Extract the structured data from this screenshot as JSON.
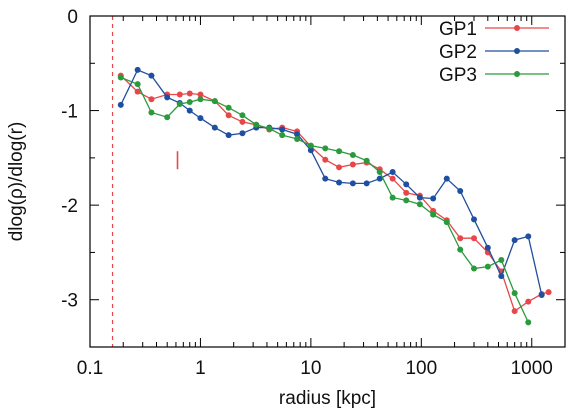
{
  "chart_data": {
    "type": "line",
    "xlabel": "radius [kpc]",
    "ylabel": "dlog(ρ)/dlog(r)",
    "xscale": "log",
    "xlim": [
      0.1,
      2000
    ],
    "ylim": [
      -3.5,
      0
    ],
    "x_ticks": [
      {
        "value": 0.1,
        "label": "0.1"
      },
      {
        "value": 1,
        "label": "1"
      },
      {
        "value": 10,
        "label": "10"
      },
      {
        "value": 100,
        "label": "100"
      },
      {
        "value": 1000,
        "label": "1000"
      }
    ],
    "y_ticks": [
      {
        "value": 0,
        "label": "0"
      },
      {
        "value": -1,
        "label": "-1"
      },
      {
        "value": -2,
        "label": "-2"
      },
      {
        "value": -3,
        "label": "-3"
      }
    ],
    "legend_position": "top-right",
    "reference_line": {
      "x": 0.16,
      "color": "#e8474a",
      "style": "dashed"
    },
    "marker_segment": {
      "x": 0.62,
      "y_top": -1.43,
      "y_bottom": -1.62,
      "color": "#e8474a"
    },
    "series": [
      {
        "name": "GP1",
        "color": "#e8474a",
        "points": [
          [
            0.19,
            -0.63
          ],
          [
            0.27,
            -0.8
          ],
          [
            0.36,
            -0.88
          ],
          [
            0.5,
            -0.83
          ],
          [
            0.65,
            -0.83
          ],
          [
            0.8,
            -0.82
          ],
          [
            1.0,
            -0.83
          ],
          [
            1.35,
            -0.9
          ],
          [
            1.8,
            -1.05
          ],
          [
            2.4,
            -1.12
          ],
          [
            3.2,
            -1.15
          ],
          [
            4.2,
            -1.2
          ],
          [
            5.5,
            -1.18
          ],
          [
            7.5,
            -1.22
          ],
          [
            10,
            -1.38
          ],
          [
            13.5,
            -1.52
          ],
          [
            18,
            -1.6
          ],
          [
            24,
            -1.57
          ],
          [
            32,
            -1.55
          ],
          [
            42,
            -1.62
          ],
          [
            55,
            -1.72
          ],
          [
            73,
            -1.87
          ],
          [
            97,
            -1.9
          ],
          [
            128,
            -2.06
          ],
          [
            170,
            -2.16
          ],
          [
            225,
            -2.35
          ],
          [
            300,
            -2.35
          ],
          [
            400,
            -2.5
          ],
          [
            530,
            -2.7
          ],
          [
            700,
            -3.12
          ],
          [
            930,
            -3.02
          ],
          [
            1230,
            -2.94
          ],
          [
            1420,
            -2.92
          ]
        ]
      },
      {
        "name": "GP2",
        "color": "#1f4fa0",
        "points": [
          [
            0.19,
            -0.94
          ],
          [
            0.27,
            -0.57
          ],
          [
            0.36,
            -0.63
          ],
          [
            0.5,
            -0.86
          ],
          [
            0.65,
            -0.92
          ],
          [
            0.8,
            -1.0
          ],
          [
            1.0,
            -1.08
          ],
          [
            1.35,
            -1.18
          ],
          [
            1.8,
            -1.26
          ],
          [
            2.4,
            -1.24
          ],
          [
            3.2,
            -1.18
          ],
          [
            4.2,
            -1.18
          ],
          [
            5.5,
            -1.2
          ],
          [
            7.5,
            -1.25
          ],
          [
            10,
            -1.42
          ],
          [
            13.5,
            -1.72
          ],
          [
            18,
            -1.76
          ],
          [
            24,
            -1.77
          ],
          [
            32,
            -1.77
          ],
          [
            42,
            -1.72
          ],
          [
            55,
            -1.65
          ],
          [
            73,
            -1.78
          ],
          [
            97,
            -1.92
          ],
          [
            128,
            -1.93
          ],
          [
            170,
            -1.72
          ],
          [
            225,
            -1.85
          ],
          [
            300,
            -2.15
          ],
          [
            400,
            -2.45
          ],
          [
            530,
            -2.75
          ],
          [
            700,
            -2.37
          ],
          [
            930,
            -2.33
          ],
          [
            1230,
            -2.95
          ]
        ]
      },
      {
        "name": "GP3",
        "color": "#2a9a3c",
        "points": [
          [
            0.19,
            -0.65
          ],
          [
            0.27,
            -0.72
          ],
          [
            0.36,
            -1.02
          ],
          [
            0.5,
            -1.07
          ],
          [
            0.65,
            -0.93
          ],
          [
            0.8,
            -0.91
          ],
          [
            1.0,
            -0.88
          ],
          [
            1.35,
            -0.9
          ],
          [
            1.8,
            -0.97
          ],
          [
            2.4,
            -1.05
          ],
          [
            3.2,
            -1.15
          ],
          [
            4.2,
            -1.19
          ],
          [
            5.5,
            -1.26
          ],
          [
            7.5,
            -1.3
          ],
          [
            10,
            -1.37
          ],
          [
            13.5,
            -1.4
          ],
          [
            18,
            -1.43
          ],
          [
            24,
            -1.47
          ],
          [
            32,
            -1.53
          ],
          [
            42,
            -1.65
          ],
          [
            55,
            -1.92
          ],
          [
            73,
            -1.95
          ],
          [
            97,
            -1.99
          ],
          [
            128,
            -2.1
          ],
          [
            170,
            -2.18
          ],
          [
            225,
            -2.47
          ],
          [
            300,
            -2.67
          ],
          [
            400,
            -2.65
          ],
          [
            530,
            -2.58
          ],
          [
            700,
            -2.93
          ],
          [
            930,
            -3.24
          ]
        ]
      }
    ]
  }
}
